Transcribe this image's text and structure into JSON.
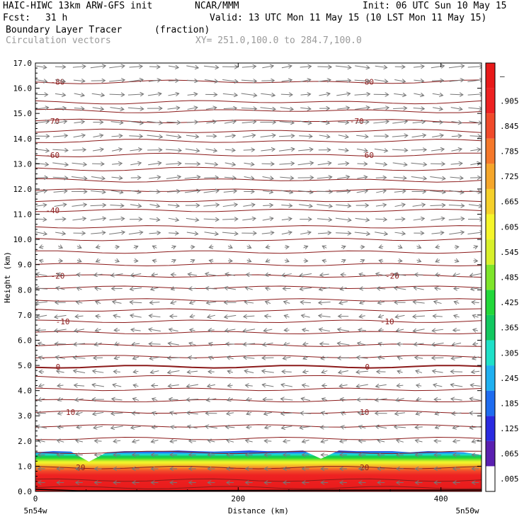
{
  "header": {
    "model": "HAIC-HIWC 13km ARW-GFS init",
    "org": "NCAR/MMM",
    "init": "Init: 06 UTC Sun 10 May 15",
    "fcst_label": "Fcst:",
    "fcst_value": "31 h",
    "valid": "Valid: 13 UTC Mon 11 May 15 (10 LST Mon 11 May 15)",
    "field": "Boundary Layer Tracer",
    "units": "(fraction)",
    "vectors": "Circulation vectors",
    "xy": "XY= 251.0,100.0 to 284.7,100.0"
  },
  "chart_data": {
    "type": "cross-section",
    "title": "Boundary Layer Tracer (fraction)",
    "xlabel": "Distance (km)",
    "ylabel": "Height (km)",
    "xlim": [
      0,
      440
    ],
    "ylim": [
      0,
      17
    ],
    "x_ticks": [
      0,
      200,
      400
    ],
    "y_ticks": [
      "0.0",
      "1.0",
      "2.0",
      "3.0",
      "4.0",
      "5.0",
      "6.0",
      "7.0",
      "8.0",
      "9.0",
      "10.0",
      "11.0",
      "12.0",
      "13.0",
      "14.0",
      "15.0",
      "16.0",
      "17.0"
    ],
    "left_end_label": "5n54w",
    "right_end_label": "5n50w",
    "colorbar_levels": [
      ".005",
      ".065",
      ".125",
      ".185",
      ".245",
      ".305",
      ".365",
      ".425",
      ".485",
      ".545",
      ".605",
      ".665",
      ".725",
      ".785",
      ".845",
      ".905",
      "–"
    ],
    "colorbar_colors": [
      "#ffffff",
      "#5a1fb0",
      "#2a2ae0",
      "#1e6cf0",
      "#1fb0f0",
      "#1ee0c8",
      "#12c860",
      "#22d83a",
      "#7ee52a",
      "#d8f02a",
      "#f5f52a",
      "#f5d02a",
      "#f5a62a",
      "#f5782a",
      "#f04a2a",
      "#ee2222",
      "#e81a1a"
    ],
    "temperature_contour_labels": [
      {
        "value": "20",
        "height_km": 0.95,
        "x_km": [
          40,
          320
        ]
      },
      {
        "value": "10",
        "height_km": 3.15,
        "x_km": [
          30,
          320
        ]
      },
      {
        "value": "0",
        "height_km": 4.95,
        "x_km": [
          20,
          325
        ]
      },
      {
        "value": "-10",
        "height_km": 6.75,
        "x_km": [
          20,
          340
        ]
      },
      {
        "value": "-20",
        "height_km": 8.55,
        "x_km": [
          15,
          345
        ]
      },
      {
        "value": "-40",
        "height_km": 11.15,
        "x_km": [
          10,
          0
        ]
      },
      {
        "value": "-60",
        "height_km": 13.35,
        "x_km": [
          10,
          320
        ]
      },
      {
        "value": "-70",
        "height_km": 14.7,
        "x_km": [
          10,
          310
        ]
      },
      {
        "value": "-80",
        "height_km": 16.25,
        "x_km": [
          15,
          320
        ]
      }
    ],
    "tracer_top_km": [
      1.55,
      1.6,
      1.58,
      1.18,
      1.55,
      1.6,
      1.6,
      1.6,
      1.62,
      1.6,
      1.58,
      1.6,
      1.62,
      1.6,
      1.6,
      1.62,
      1.3,
      1.62,
      1.6,
      1.6,
      1.6,
      1.55,
      1.6,
      1.58,
      1.55,
      1.45
    ]
  }
}
